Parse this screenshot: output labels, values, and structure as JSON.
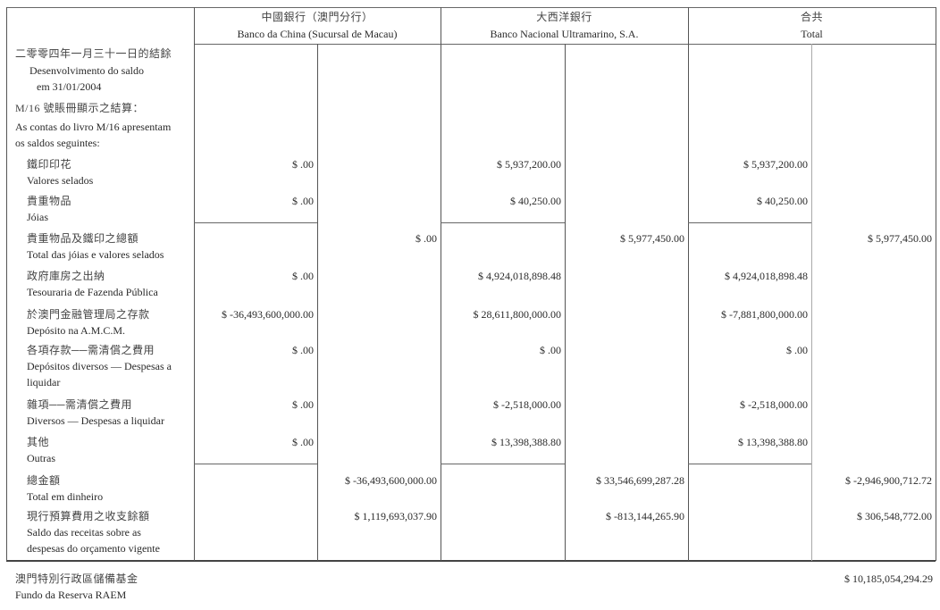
{
  "header": {
    "columns": [
      {
        "zh": "中國銀行（澳門分行）",
        "pt": "Banco da China (Sucursal de Macau)"
      },
      {
        "zh": "大西洋銀行",
        "pt": "Banco Nacional Ultramarino, S.A."
      },
      {
        "zh": "合共",
        "pt": "Total"
      }
    ]
  },
  "intro": {
    "zh": "二零零四年一月三十一日的結餘",
    "pt1": "Desenvolvimento do saldo",
    "pt2": "em 31/01/2004",
    "m16_zh": "M/16 號賬冊顯示之結算：",
    "m16_pt1": "As contas do livro M/16 apresentam",
    "m16_pt2": "os saldos seguintes:"
  },
  "rows": [
    {
      "zh": "鐵印印花",
      "pt": [
        "Valores selados"
      ],
      "bdc": "$ .00",
      "bdc_total": "",
      "bnu": "$ 5,937,200.00",
      "bnu_total": "",
      "tot": "$ 5,937,200.00",
      "tot_total": ""
    },
    {
      "zh": "貴重物品",
      "pt": [
        "Jóias"
      ],
      "bdc": "$ .00",
      "bdc_total": "",
      "bnu": "$ 40,250.00",
      "bnu_total": "",
      "tot": "$ 40,250.00",
      "tot_total": ""
    },
    {
      "zh": "貴重物品及鐵印之總額",
      "pt": [
        "Total das jóias e valores selados"
      ],
      "bdc": "",
      "bdc_total": "$ .00",
      "bnu": "",
      "bnu_total": "$ 5,977,450.00",
      "tot": "",
      "tot_total": "$ 5,977,450.00"
    },
    {
      "zh": "政府庫房之出納",
      "pt": [
        "Tesouraria de Fazenda Pública"
      ],
      "bdc": "$ .00",
      "bdc_total": "",
      "bnu": "$ 4,924,018,898.48",
      "bnu_total": "",
      "tot": "$ 4,924,018,898.48",
      "tot_total": ""
    },
    {
      "zh": "於澳門金融管理局之存款",
      "pt": [
        "Depósito na A.M.C.M."
      ],
      "bdc": "$ -36,493,600,000.00",
      "bdc_total": "",
      "bnu": "$ 28,611,800,000.00",
      "bnu_total": "",
      "tot": "$ -7,881,800,000.00",
      "tot_total": ""
    },
    {
      "zh": "各項存款──需清償之費用",
      "pt": [
        "Depósitos diversos — Despesas a",
        "liquidar"
      ],
      "bdc": "$ .00",
      "bdc_total": "",
      "bnu": "$ .00",
      "bnu_total": "",
      "tot": "$ .00",
      "tot_total": ""
    },
    {
      "zh": "雜項──需清償之費用",
      "pt": [
        "Diversos — Despesas a liquidar"
      ],
      "bdc": "$ .00",
      "bdc_total": "",
      "bnu": "$ -2,518,000.00",
      "bnu_total": "",
      "tot": "$ -2,518,000.00",
      "tot_total": ""
    },
    {
      "zh": "其他",
      "pt": [
        "Outras"
      ],
      "bdc": "$ .00",
      "bdc_total": "",
      "bnu": "$ 13,398,388.80",
      "bnu_total": "",
      "tot": "$ 13,398,388.80",
      "tot_total": ""
    },
    {
      "zh": "總金額",
      "pt": [
        "Total em dinheiro"
      ],
      "bdc": "",
      "bdc_total": "$ -36,493,600,000.00",
      "bnu": "",
      "bnu_total": "$ 33,546,699,287.28",
      "tot": "",
      "tot_total": "$ -2,946,900,712.72"
    },
    {
      "zh": "現行預算費用之收支餘額",
      "pt": [
        "Saldo das receitas sobre as",
        "despesas do orçamento vigente"
      ],
      "bdc": "",
      "bdc_total": "$ 1,119,693,037.90",
      "bnu": "",
      "bnu_total": "$ -813,144,265.90",
      "tot": "",
      "tot_total": "$ 306,548,772.00"
    }
  ],
  "footer": {
    "zh": "澳門特別行政區儲備基金",
    "pt": "Fundo da Reserva RAEM",
    "value": "$ 10,185,054,294.29"
  }
}
